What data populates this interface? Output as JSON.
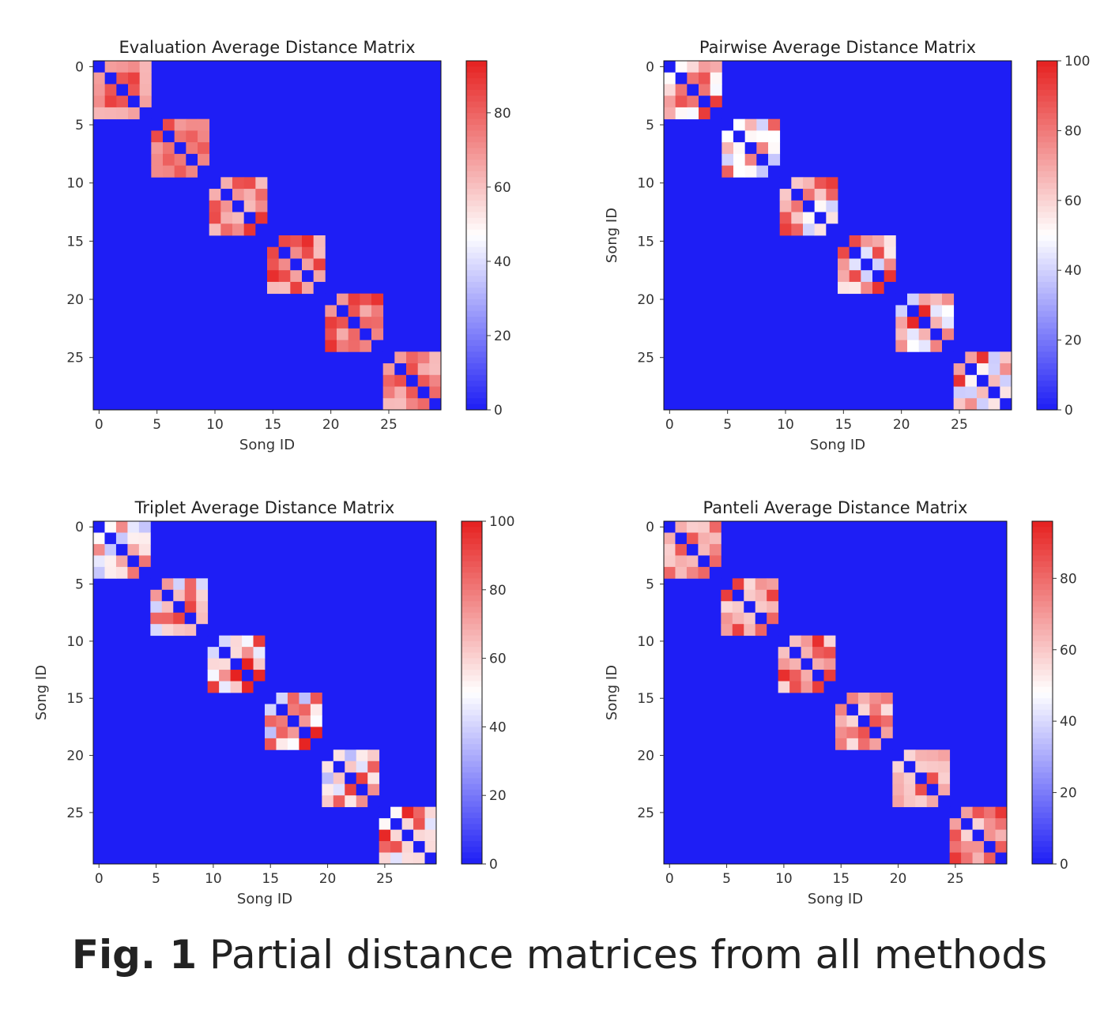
{
  "caption": {
    "label": "Fig. 1",
    "text": "Partial distance matrices from all methods"
  },
  "colormap": {
    "low": "#1e1ef5",
    "mid": "#ffffff",
    "high": "#e6201f",
    "name": "bwr"
  },
  "chart_data": [
    {
      "type": "heatmap",
      "title": "Evaluation Average Distance Matrix",
      "xlabel": "Song ID",
      "ylabel": "",
      "size": 30,
      "block_sizes": [
        5,
        5,
        5,
        5,
        5,
        5
      ],
      "x_ticks": [
        "0",
        "5",
        "10",
        "15",
        "20",
        "25"
      ],
      "y_ticks": [
        "0",
        "5",
        "10",
        "15",
        "20",
        "25"
      ],
      "colorbar": {
        "ticks": [
          "0",
          "20",
          "40",
          "60",
          "80"
        ],
        "range": [
          0,
          94
        ]
      },
      "note": "values 0 outside diagonal blocks; diagonal 0; off-diagonal block values ~60-92"
    },
    {
      "type": "heatmap",
      "title": "Pairwise Average Distance Matrix",
      "xlabel": "Song ID",
      "ylabel": "Song ID",
      "size": 30,
      "block_sizes": [
        5,
        5,
        5,
        5,
        5,
        5
      ],
      "x_ticks": [
        "0",
        "5",
        "10",
        "15",
        "20",
        "25"
      ],
      "y_ticks": [
        "0",
        "5",
        "10",
        "15",
        "20",
        "25"
      ],
      "colorbar": {
        "ticks": [
          "0",
          "20",
          "40",
          "60",
          "80",
          "100"
        ],
        "range": [
          0,
          100
        ]
      },
      "note": "values 0 outside diagonal blocks; diagonal 0; off-diagonal block values ~35-100"
    },
    {
      "type": "heatmap",
      "title": "Triplet Average Distance Matrix",
      "xlabel": "Song ID",
      "ylabel": "Song ID",
      "size": 30,
      "block_sizes": [
        5,
        5,
        5,
        5,
        5,
        5
      ],
      "x_ticks": [
        "0",
        "5",
        "10",
        "15",
        "20",
        "25"
      ],
      "y_ticks": [
        "0",
        "5",
        "10",
        "15",
        "20",
        "25"
      ],
      "colorbar": {
        "ticks": [
          "0",
          "20",
          "40",
          "60",
          "80",
          "100"
        ],
        "range": [
          0,
          100
        ]
      },
      "note": "values 0 outside diagonal blocks; diagonal 0; off-diagonal block values ~35-100"
    },
    {
      "type": "heatmap",
      "title": "Panteli Average Distance Matrix",
      "xlabel": "Song ID",
      "ylabel": "Song ID",
      "size": 30,
      "block_sizes": [
        5,
        5,
        5,
        5,
        5,
        5
      ],
      "x_ticks": [
        "0",
        "5",
        "10",
        "15",
        "20",
        "25"
      ],
      "y_ticks": [
        "0",
        "5",
        "10",
        "15",
        "20",
        "25"
      ],
      "colorbar": {
        "ticks": [
          "0",
          "20",
          "40",
          "60",
          "80"
        ],
        "range": [
          0,
          96
        ]
      },
      "note": "values 0 outside diagonal blocks; diagonal 0; off-diagonal block values ~55-96"
    }
  ]
}
